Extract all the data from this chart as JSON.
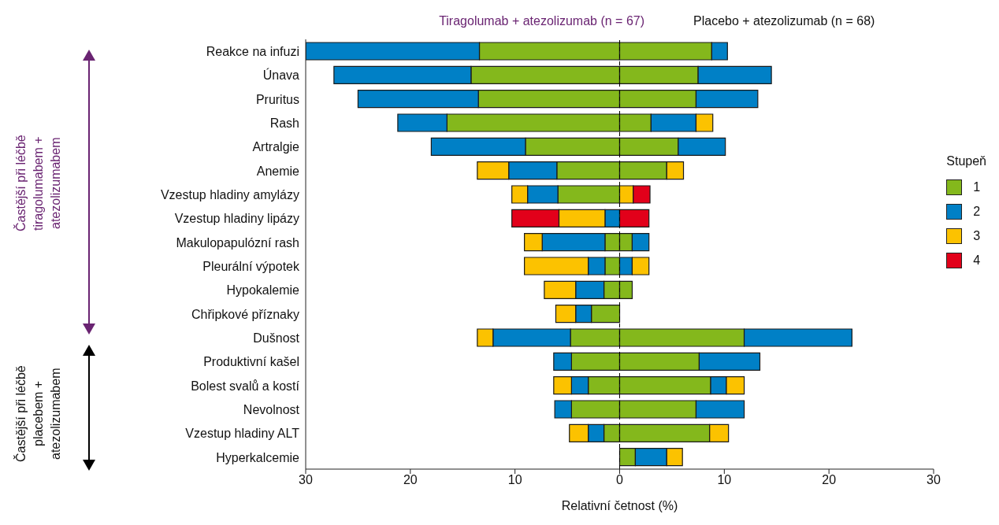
{
  "chart_data": {
    "type": "bar",
    "orientation": "horizontal",
    "stacked": true,
    "categories": [
      "Reakce na infuzi",
      "Únava",
      "Pruritus",
      "Rash",
      "Artralgie",
      "Anemie",
      "Vzestup hladiny amylázy",
      "Vzestup hladiny lipázy",
      "Makulopapulózní rash",
      "Pleurální výpotek",
      "Hypokalemie",
      "Chřipkové příznaky",
      "Dušnost",
      "Produktivní kašel",
      "Bolest svalů a kostí",
      "Nevolnost",
      "Vzestup hladiny ALT",
      "Hyperkalcemie"
    ],
    "series": [
      {
        "name": "1",
        "color": "#84b81c",
        "values": [
          -13.4,
          -14.2,
          -13.5,
          -16.5,
          -9.0,
          -6.0,
          -5.9,
          null,
          -1.4,
          -1.4,
          -1.5,
          -2.7,
          -4.7,
          -4.6,
          -3.0,
          -4.6,
          -1.5,
          null
        ]
      },
      {
        "name": "2",
        "color": "#0080c6",
        "values": [
          -16.6,
          -13.1,
          -11.5,
          -4.7,
          -9.0,
          -4.6,
          -2.9,
          -1.4,
          -6.0,
          -1.6,
          -2.7,
          -1.5,
          -7.4,
          -1.7,
          -1.6,
          -1.6,
          -1.5,
          null
        ]
      },
      {
        "name": "3",
        "color": "#fcc200",
        "values": [
          null,
          null,
          null,
          null,
          null,
          -3.0,
          -1.5,
          -4.4,
          -1.7,
          -6.1,
          -3.0,
          -1.9,
          -1.5,
          null,
          -1.7,
          null,
          -1.8,
          null
        ]
      },
      {
        "name": "4",
        "color": "#e2001a",
        "values": [
          null,
          null,
          null,
          null,
          null,
          null,
          null,
          -4.5,
          null,
          null,
          null,
          null,
          null,
          null,
          null,
          null,
          null,
          null
        ]
      },
      {
        "color": "#84b81c",
        "values": [
          8.8,
          7.5,
          7.3,
          3.0,
          5.6,
          4.5,
          null,
          null,
          1.2,
          null,
          1.2,
          null,
          11.9,
          7.6,
          8.7,
          7.3,
          8.6,
          1.5
        ]
      },
      {
        "color": "#0080c6",
        "values": [
          1.5,
          7.0,
          5.9,
          4.3,
          4.5,
          null,
          null,
          null,
          1.6,
          1.2,
          null,
          null,
          10.3,
          5.8,
          1.5,
          4.6,
          null,
          3.0
        ]
      },
      {
        "color": "#fcc200",
        "values": [
          null,
          null,
          null,
          1.6,
          null,
          1.6,
          1.3,
          null,
          null,
          1.6,
          null,
          null,
          null,
          null,
          1.7,
          null,
          1.8,
          1.5
        ]
      },
      {
        "color": "#e2001a",
        "values": [
          null,
          null,
          null,
          null,
          null,
          null,
          1.6,
          2.8,
          null,
          null,
          null,
          null,
          null,
          null,
          null,
          null,
          null,
          null
        ]
      }
    ],
    "xlim": [
      -30,
      30
    ],
    "xticks": [
      {
        "value": -30,
        "label": "30"
      },
      {
        "value": -20,
        "label": "20"
      },
      {
        "value": -10,
        "label": "10"
      },
      0,
      10,
      20,
      30
    ],
    "xlabel": "Relativní četnost (%)",
    "legend": "right",
    "legend_title": "Stupeň",
    "ref_lines": [
      {
        "axis": "x",
        "value": 0,
        "color": "#000000",
        "line_style": "dashed"
      }
    ],
    "annotations": [
      "Tiragolumab + atezolizumab (n = 67)",
      "Placebo + atezolizumab (n = 68)",
      "Častější při léčbě tiragolumabem + atezolizumabem",
      "Častější při léčbě placebem + atezolizumabem"
    ]
  }
}
